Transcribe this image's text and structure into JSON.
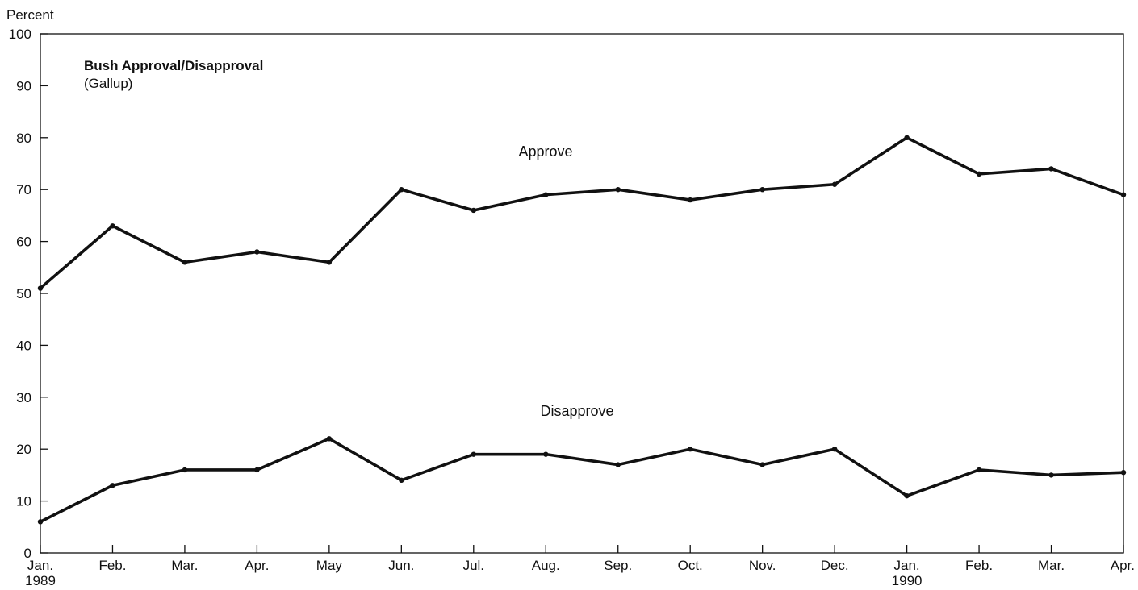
{
  "chart_data": {
    "type": "line",
    "title": "Bush Approval/Disapproval",
    "subtitle": "(Gallup)",
    "ylabel": "Percent",
    "xlabel": "",
    "ylim": [
      0,
      100
    ],
    "yticks": [
      0,
      10,
      20,
      30,
      40,
      50,
      60,
      70,
      80,
      90,
      100
    ],
    "grid": false,
    "x": [
      "Jan. 1989",
      "Feb.",
      "Mar.",
      "Apr.",
      "May",
      "Jun.",
      "Jul.",
      "Aug.",
      "Sep.",
      "Oct.",
      "Nov.",
      "Dec.",
      "Jan. 1990",
      "Feb.",
      "Mar.",
      "Apr."
    ],
    "x_tick_labels": [
      [
        "Jan.",
        "1989"
      ],
      [
        "Feb."
      ],
      [
        "Mar."
      ],
      [
        "Apr."
      ],
      [
        "May"
      ],
      [
        "Jun."
      ],
      [
        "Jul."
      ],
      [
        "Aug."
      ],
      [
        "Sep."
      ],
      [
        "Oct."
      ],
      [
        "Nov."
      ],
      [
        "Dec."
      ],
      [
        "Jan.",
        "1990"
      ],
      [
        "Feb."
      ],
      [
        "Mar."
      ],
      [
        "Apr."
      ]
    ],
    "series": [
      {
        "name": "Approve",
        "values": [
          51,
          63,
          56,
          58,
          56,
          70,
          66,
          69,
          70,
          68,
          70,
          71,
          80,
          73,
          74,
          69
        ]
      },
      {
        "name": "Disapprove",
        "values": [
          6,
          13,
          16,
          16,
          22,
          14,
          19,
          19,
          17,
          20,
          17,
          20,
          11,
          16,
          15,
          15.5
        ]
      }
    ],
    "colors": {
      "line": "#111111",
      "axis": "#111111",
      "background": "#ffffff"
    }
  }
}
